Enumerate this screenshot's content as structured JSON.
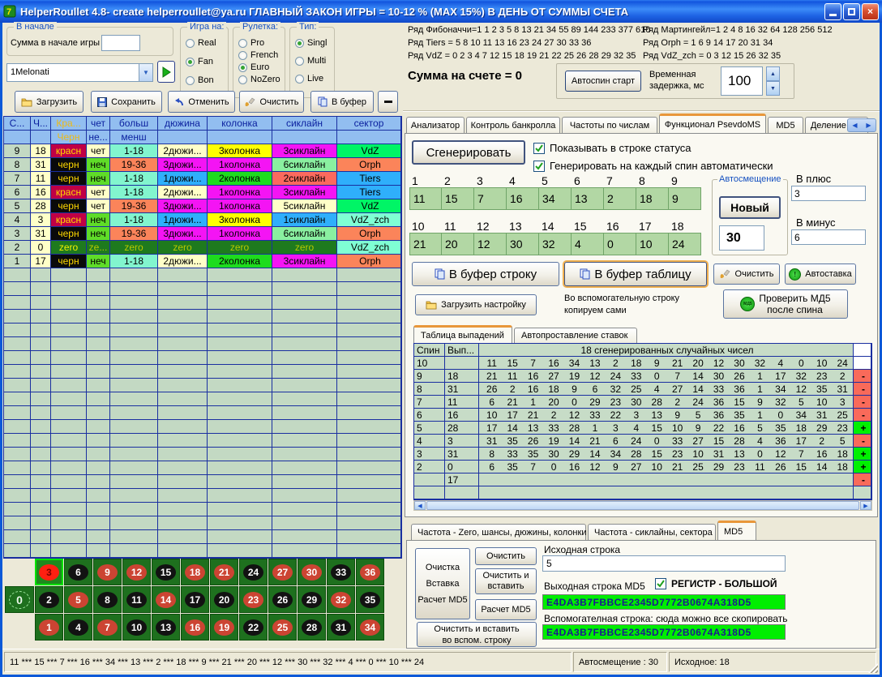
{
  "window": {
    "title": "HelperRoullet 4.8- create helperroullet@ya.ru ГЛАВНЫЙ ЗАКОН ИГРЫ = 10-12 % (MAX 15%) В ДЕНЬ ОТ СУММЫ СЧЕТА"
  },
  "left": {
    "start_group": {
      "caption": "В начале",
      "label": "Сумма в начале игры",
      "value": ""
    },
    "profile": {
      "value": "1Melonati"
    },
    "groups": [
      {
        "caption": "Игра на:",
        "options": [
          "Real",
          "Fan",
          "Bon"
        ],
        "selected": "Fan"
      },
      {
        "caption": "Рулетка:",
        "options": [
          "Pro",
          "French",
          "Euro",
          "NoZero"
        ],
        "selected": "Euro"
      },
      {
        "caption": "Тип:",
        "options": [
          "Singl",
          "Multi",
          "Live"
        ],
        "selected": "Singl"
      }
    ],
    "toolbar": {
      "load": "Загрузить",
      "save": "Сохранить",
      "undo": "Отменить",
      "clear": "Очистить",
      "copy": "В буфер",
      "collapse": "—"
    },
    "table": {
      "header1": [
        "С...",
        "Ч...",
        "Кра...",
        "чет",
        "больш",
        "дюжина",
        "колонка",
        "сиклайн",
        "сектор"
      ],
      "header2": [
        "",
        "",
        "Черн",
        "не...",
        "менш",
        "",
        "",
        "",
        ""
      ],
      "rows": [
        [
          [
            "9",
            "sp"
          ],
          [
            "18",
            "nm"
          ],
          [
            "красн",
            "red"
          ],
          [
            "чет",
            "even"
          ],
          [
            "1-18",
            "low"
          ],
          [
            "2дюжи...",
            "d2"
          ],
          [
            "3колонка",
            "k3"
          ],
          [
            "3сиклайн",
            "s3"
          ],
          [
            "VdZ",
            "vdz sec"
          ]
        ],
        [
          [
            "8",
            "sp"
          ],
          [
            "31",
            "nm"
          ],
          [
            "черн",
            "black"
          ],
          [
            "неч",
            "odd"
          ],
          [
            "19-36",
            "high"
          ],
          [
            "3дюжи...",
            "d3"
          ],
          [
            "1колонка",
            "k1"
          ],
          [
            "6сиклайн",
            "s6"
          ],
          [
            "Orph",
            "orph sec"
          ]
        ],
        [
          [
            "7",
            "sp"
          ],
          [
            "11",
            "nm"
          ],
          [
            "черн",
            "black"
          ],
          [
            "неч",
            "odd"
          ],
          [
            "1-18",
            "low"
          ],
          [
            "1дюжи...",
            "d1"
          ],
          [
            "2колонка",
            "k2"
          ],
          [
            "2сиклайн",
            "s2"
          ],
          [
            "Tiers",
            "tiers sec"
          ]
        ],
        [
          [
            "6",
            "sp"
          ],
          [
            "16",
            "nm"
          ],
          [
            "красн",
            "red"
          ],
          [
            "чет",
            "even"
          ],
          [
            "1-18",
            "low"
          ],
          [
            "2дюжи...",
            "d2"
          ],
          [
            "1колонка",
            "k1"
          ],
          [
            "3сиклайн",
            "s3"
          ],
          [
            "Tiers",
            "tiers sec"
          ]
        ],
        [
          [
            "5",
            "sp"
          ],
          [
            "28",
            "nm"
          ],
          [
            "черн",
            "black"
          ],
          [
            "чет",
            "even"
          ],
          [
            "19-36",
            "high"
          ],
          [
            "3дюжи...",
            "d3"
          ],
          [
            "1колонка",
            "k1"
          ],
          [
            "5сиклайн",
            "s5"
          ],
          [
            "VdZ",
            "vdz sec"
          ]
        ],
        [
          [
            "4",
            "sp"
          ],
          [
            "3",
            "nm"
          ],
          [
            "красн",
            "red"
          ],
          [
            "неч",
            "odd"
          ],
          [
            "1-18",
            "low"
          ],
          [
            "1дюжи...",
            "d1"
          ],
          [
            "3колонка",
            "k3"
          ],
          [
            "1сиклайн",
            "s1"
          ],
          [
            "VdZ_zch",
            "zch sec"
          ]
        ],
        [
          [
            "3",
            "sp"
          ],
          [
            "31",
            "nm"
          ],
          [
            "черн",
            "black"
          ],
          [
            "неч",
            "odd"
          ],
          [
            "19-36",
            "high"
          ],
          [
            "3дюжи...",
            "d3"
          ],
          [
            "1колонка",
            "k1"
          ],
          [
            "6сиклайн",
            "s6"
          ],
          [
            "Orph",
            "orph sec"
          ]
        ],
        [
          [
            "2",
            "sp"
          ],
          [
            "0",
            "nm"
          ],
          [
            "zero",
            "zr zrb"
          ],
          [
            "ze...",
            "zr"
          ],
          [
            "zero",
            "zr"
          ],
          [
            "zero",
            "zr"
          ],
          [
            "zero",
            "zr"
          ],
          [
            "zero",
            "zr"
          ],
          [
            "VdZ_zch",
            "zch sec"
          ]
        ],
        [
          [
            "1",
            "sp"
          ],
          [
            "17",
            "nm"
          ],
          [
            "черн",
            "black"
          ],
          [
            "неч",
            "odd"
          ],
          [
            "1-18",
            "low"
          ],
          [
            "2дюжи...",
            "d2"
          ],
          [
            "2колонка",
            "k2"
          ],
          [
            "3сиклайн",
            "s3"
          ],
          [
            "Orph",
            "orph sec"
          ]
        ]
      ],
      "empty_rows": 21
    },
    "board": {
      "zero": "0",
      "rows": [
        [
          3,
          6,
          9,
          12,
          15,
          18,
          21,
          24,
          27,
          30,
          33,
          36
        ],
        [
          2,
          5,
          8,
          11,
          14,
          17,
          20,
          23,
          26,
          29,
          32,
          35
        ],
        [
          1,
          4,
          7,
          10,
          13,
          16,
          19,
          22,
          25,
          28,
          31,
          34
        ]
      ],
      "red_numbers": [
        1,
        3,
        5,
        7,
        9,
        12,
        14,
        16,
        18,
        19,
        21,
        23,
        25,
        27,
        30,
        32,
        34,
        36
      ],
      "highlighted": 3
    }
  },
  "right": {
    "sequences": {
      "left": [
        "Ряд Фибоначчи=1 1 2 3 5 8 13 21 34 55 89 144 233 377 610",
        "Ряд Tiers = 5 8 10 11 13 16 23 24 27 30 33 36",
        "Ряд VdZ = 0 2 3 4 7 12 15 18 19 21 22 25 26 28 29 32 35"
      ],
      "right": [
        "Ряд Мартингейл=1 2 4 8 16 32 64 128 256 512",
        "Ряд Orph = 1 6 9 14 17 20 31 34",
        "Ряд VdZ_zch = 0 3 12 15 26 32 35"
      ]
    },
    "account": "Сумма на счете = 0",
    "autospin": {
      "button": "Автоспин старт",
      "delay_label": "Временная задержка, мс",
      "delay_value": "100"
    },
    "tabs": [
      {
        "label": "Анализатор"
      },
      {
        "label": "Контроль банкролла"
      },
      {
        "label": "Частоты по числам"
      },
      {
        "label": "Функционал PsevdoMS",
        "active": true
      },
      {
        "label": "MD5"
      },
      {
        "label": "Деление кол"
      }
    ],
    "generator": {
      "generate_button": "Сгенерировать",
      "checkbox_status": "Показывать в строке статуса",
      "checkbox_auto": "Генерировать на каждый спин автоматически",
      "labels1": [
        "1",
        "2",
        "3",
        "4",
        "5",
        "6",
        "7",
        "8",
        "9"
      ],
      "values1": [
        11,
        15,
        7,
        16,
        34,
        13,
        2,
        18,
        9
      ],
      "labels2": [
        "10",
        "11",
        "12",
        "13",
        "14",
        "15",
        "16",
        "17",
        "18"
      ],
      "values2": [
        21,
        20,
        12,
        30,
        32,
        4,
        0,
        10,
        24
      ],
      "autoshift": {
        "caption": "Автосмещение",
        "new_button": "Новый",
        "value": "30"
      },
      "plus": {
        "label": "В плюс",
        "value": "3"
      },
      "minus": {
        "label": "В минус",
        "value": "6"
      },
      "buf_row_button": "В буфер строку",
      "buf_table_button": "В буфер таблицу",
      "clear_button": "Очистить",
      "autobet_button": "Автоставка",
      "load_settings_button": "Загрузить настройку",
      "hint_line1": "Во вспомогательную строку",
      "hint_line2": "копируем сами",
      "check_md5_line1": "Проверить МД5",
      "check_md5_line2": "после спина"
    },
    "inner_tabs": [
      {
        "label": "Таблица выпадений",
        "active": true
      },
      {
        "label": "Автопроставление ставок"
      }
    ],
    "spins_table": {
      "col_spin": "Спин",
      "col_out": "Вып...",
      "col_numbers": "18 сгенерированных случайных чисел",
      "rows": [
        {
          "spin": "10",
          "out": "",
          "nums": [
            11,
            15,
            7,
            16,
            34,
            13,
            2,
            18,
            9,
            21,
            20,
            12,
            30,
            32,
            4,
            0,
            10,
            24
          ],
          "res": "white"
        },
        {
          "spin": "9",
          "out": "18",
          "nums": [
            21,
            11,
            16,
            27,
            19,
            12,
            24,
            33,
            0,
            7,
            14,
            30,
            26,
            1,
            17,
            32,
            23,
            2
          ],
          "res": "-"
        },
        {
          "spin": "8",
          "out": "31",
          "nums": [
            26,
            2,
            16,
            18,
            9,
            6,
            32,
            25,
            4,
            27,
            14,
            33,
            36,
            1,
            34,
            12,
            35,
            31
          ],
          "res": "-"
        },
        {
          "spin": "7",
          "out": "11",
          "nums": [
            6,
            21,
            1,
            20,
            0,
            29,
            23,
            30,
            28,
            2,
            24,
            36,
            15,
            9,
            32,
            5,
            10,
            3
          ],
          "res": "-"
        },
        {
          "spin": "6",
          "out": "16",
          "nums": [
            10,
            17,
            21,
            2,
            12,
            33,
            22,
            3,
            13,
            9,
            5,
            36,
            35,
            1,
            0,
            34,
            31,
            25
          ],
          "res": "-"
        },
        {
          "spin": "5",
          "out": "28",
          "nums": [
            17,
            14,
            13,
            33,
            28,
            1,
            3,
            4,
            15,
            10,
            9,
            22,
            16,
            5,
            35,
            18,
            29,
            23
          ],
          "res": "+"
        },
        {
          "spin": "4",
          "out": "3",
          "nums": [
            31,
            35,
            26,
            19,
            14,
            21,
            6,
            24,
            0,
            33,
            27,
            15,
            28,
            4,
            36,
            17,
            2,
            5
          ],
          "res": "-"
        },
        {
          "spin": "3",
          "out": "31",
          "nums": [
            8,
            33,
            35,
            30,
            29,
            14,
            34,
            28,
            15,
            23,
            10,
            31,
            13,
            0,
            12,
            7,
            16,
            18
          ],
          "res": "+"
        },
        {
          "spin": "2",
          "out": "0",
          "nums": [
            6,
            35,
            7,
            0,
            16,
            12,
            9,
            27,
            10,
            21,
            25,
            29,
            23,
            11,
            26,
            15,
            14,
            18
          ],
          "res": "+"
        },
        {
          "spin": "",
          "out": "17",
          "nums": [],
          "res": "-"
        },
        {
          "spin": "",
          "out": "",
          "nums": [],
          "res": ""
        }
      ]
    },
    "bottom_tabs": [
      {
        "label": "Частота - Zero, шансы, дюжины, колонки"
      },
      {
        "label": "Частота - сиклайны, сектора"
      },
      {
        "label": "MD5",
        "active": true
      }
    ],
    "md5": {
      "big_button_line1": "Очистка",
      "big_button_line2": "Вставка",
      "big_button_line3": "Расчет MD5",
      "clear_button": "Очистить",
      "clear_paste_line1": "Очистить и",
      "clear_paste_line2": "вставить",
      "calc_button": "Расчет MD5",
      "source_label": "Исходная строка",
      "source_value": "5",
      "out_label": "Выходная строка MD5",
      "register_label": "РЕГИСТР - БОЛЬШОЙ",
      "out_value": "E4DA3B7FBBCE2345D7772B0674A318D5",
      "helper_label": "Вспомогателная строка: сюда можно все скопировать",
      "helper_value": "E4DA3B7FBBCE2345D7772B0674A318D5",
      "helper_button_line1": "Очистить и  вставить",
      "helper_button_line2": "во вспом. строку"
    }
  },
  "status_bar": {
    "spins": "11 *** 15 *** 7 *** 16 *** 34 *** 13 *** 2 *** 18 *** 9 *** 21 *** 20 *** 12 *** 30 *** 32 *** 4 *** 0 *** 10 *** 24",
    "autoshift": "Автосмещение : 30",
    "source": "Исходное: 18"
  },
  "colors": {
    "active_tab_accent": "#E8973A",
    "md5_field_green": "#00EE00",
    "result_plus": "#00F000",
    "result_minus": "#F96A5A",
    "table_border_navy": "#1A2FA0"
  }
}
